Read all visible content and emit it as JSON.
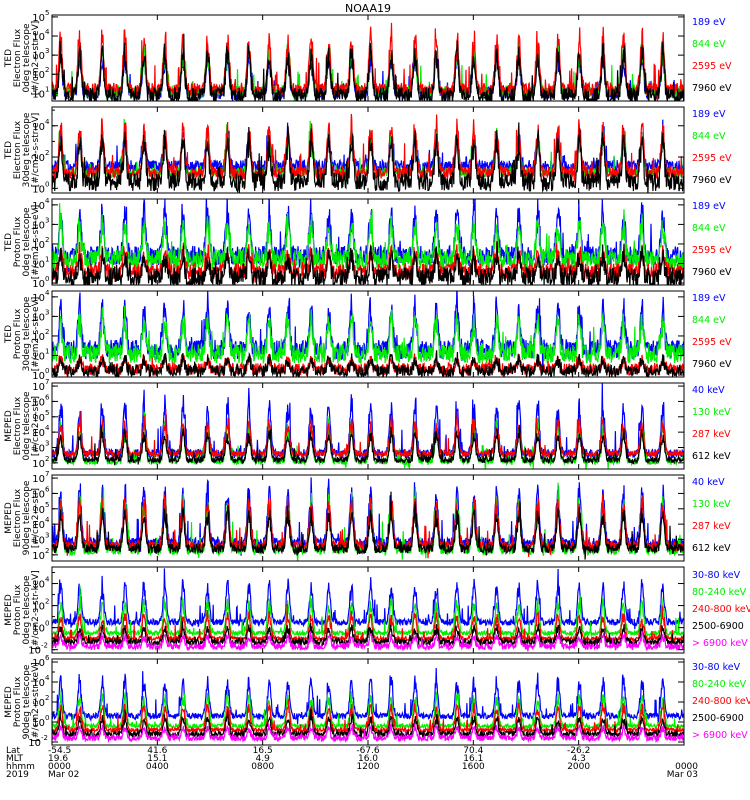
{
  "colors": {
    "black": "#000000",
    "red": "#ff0000",
    "green": "#00ee00",
    "blue": "#0000ff",
    "magenta": "#ff00ff"
  },
  "chart_data": {
    "type": "line",
    "title": "NOAA19",
    "panels": [
      {
        "ylabel": [
          "TED",
          "Electron Flux",
          "0deg telescope",
          "[#/cm2-s-str-eV]"
        ],
        "yticks": [
          {
            "base": "10",
            "exp": "1"
          },
          {
            "base": "10",
            "exp": "2"
          },
          {
            "base": "10",
            "exp": "3"
          },
          {
            "base": "10",
            "exp": "4"
          },
          {
            "base": "10",
            "exp": "5"
          }
        ],
        "ymin_exp": 0.6,
        "ymax_exp": 5.1,
        "series": [
          {
            "name": "7960 eV",
            "color": "#000000",
            "base": 0.9,
            "amp": 2.2,
            "noise": 0.4
          },
          {
            "name": "2595 eV",
            "color": "#ff0000",
            "base": 1.2,
            "amp": 2.6,
            "noise": 0.35
          },
          {
            "name": "844 eV",
            "color": "#00ee00",
            "base": 1.1,
            "amp": 2.0,
            "noise": 0.3
          },
          {
            "name": "189 eV",
            "color": "#0000ff",
            "base": 1.0,
            "amp": 1.8,
            "noise": 0.3
          }
        ]
      },
      {
        "ylabel": [
          "TED",
          "Electron Flux",
          "30deg telescope",
          "[#/cm2-s-str-eV]"
        ],
        "yticks": [
          {
            "base": "10",
            "exp": "0"
          },
          {
            "base": "10",
            "exp": "2"
          },
          {
            "base": "10",
            "exp": "4"
          }
        ],
        "ymin_exp": -0.3,
        "ymax_exp": 5.2,
        "series": [
          {
            "name": "7960 eV",
            "color": "#000000",
            "base": 0.4,
            "amp": 2.6,
            "noise": 0.6
          },
          {
            "name": "2595 eV",
            "color": "#ff0000",
            "base": 1.0,
            "amp": 2.8,
            "noise": 0.4
          },
          {
            "name": "844 eV",
            "color": "#00ee00",
            "base": 1.0,
            "amp": 2.2,
            "noise": 0.3
          },
          {
            "name": "189 eV",
            "color": "#0000ff",
            "base": 1.4,
            "amp": 1.8,
            "noise": 0.4
          }
        ]
      },
      {
        "ylabel": [
          "TED",
          "Proton Flux",
          "0deg telescope",
          "[#/cm2-s-str-eV]"
        ],
        "yticks": [
          {
            "base": "10",
            "exp": "0"
          },
          {
            "base": "10",
            "exp": "1"
          },
          {
            "base": "10",
            "exp": "2"
          },
          {
            "base": "10",
            "exp": "3"
          },
          {
            "base": "10",
            "exp": "4"
          }
        ],
        "ymin_exp": -0.1,
        "ymax_exp": 4.3,
        "series": [
          {
            "name": "7960 eV",
            "color": "#000000",
            "base": 0.3,
            "amp": 1.0,
            "noise": 0.5
          },
          {
            "name": "2595 eV",
            "color": "#ff0000",
            "base": 0.6,
            "amp": 1.0,
            "noise": 0.4
          },
          {
            "name": "844 eV",
            "color": "#00ee00",
            "base": 1.2,
            "amp": 1.8,
            "noise": 0.5
          },
          {
            "name": "189 eV",
            "color": "#0000ff",
            "base": 1.4,
            "amp": 2.2,
            "noise": 0.5
          }
        ]
      },
      {
        "ylabel": [
          "TED",
          "Proton Flux",
          "30deg telescope",
          "[#/cm2-s-str-eV]"
        ],
        "yticks": [
          {
            "base": "10",
            "exp": "0"
          },
          {
            "base": "10",
            "exp": "1"
          },
          {
            "base": "10",
            "exp": "2"
          },
          {
            "base": "10",
            "exp": "3"
          },
          {
            "base": "10",
            "exp": "4"
          }
        ],
        "ymin_exp": -0.1,
        "ymax_exp": 4.3,
        "series": [
          {
            "name": "7960 eV",
            "color": "#000000",
            "base": 0.2,
            "amp": 0.6,
            "noise": 0.3
          },
          {
            "name": "2595 eV",
            "color": "#ff0000",
            "base": 0.3,
            "amp": 0.5,
            "noise": 0.3
          },
          {
            "name": "844 eV",
            "color": "#00ee00",
            "base": 1.1,
            "amp": 1.7,
            "noise": 0.5
          },
          {
            "name": "189 eV",
            "color": "#0000ff",
            "base": 1.3,
            "amp": 2.1,
            "noise": 0.5
          }
        ]
      },
      {
        "ylabel": [
          "MEPED",
          "Electron Flux",
          "0deg telescope",
          "[#/cm2-s-str]"
        ],
        "yticks": [
          {
            "base": "10",
            "exp": "2"
          },
          {
            "base": "10",
            "exp": "3"
          },
          {
            "base": "10",
            "exp": "4"
          },
          {
            "base": "10",
            "exp": "5"
          },
          {
            "base": "10",
            "exp": "6"
          },
          {
            "base": "10",
            "exp": "7"
          }
        ],
        "ymin_exp": 1.6,
        "ymax_exp": 7.2,
        "series": [
          {
            "name": "612 keV",
            "color": "#000000",
            "base": 2.2,
            "amp": 1.6,
            "noise": 0.2
          },
          {
            "name": "287 keV",
            "color": "#ff0000",
            "base": 2.6,
            "amp": 1.9,
            "noise": 0.2
          },
          {
            "name": "130 keV",
            "color": "#00ee00",
            "base": 2.1,
            "amp": 2.2,
            "noise": 0.2
          },
          {
            "name": "40 keV",
            "color": "#0000ff",
            "base": 2.6,
            "amp": 3.0,
            "noise": 0.3
          }
        ]
      },
      {
        "ylabel": [
          "MEPED",
          "Electron Flux",
          "90deg telescope",
          "[#/cm2-s-str]"
        ],
        "yticks": [
          {
            "base": "10",
            "exp": "2"
          },
          {
            "base": "10",
            "exp": "3"
          },
          {
            "base": "10",
            "exp": "4"
          },
          {
            "base": "10",
            "exp": "5"
          },
          {
            "base": "10",
            "exp": "6"
          },
          {
            "base": "10",
            "exp": "7"
          }
        ],
        "ymin_exp": 1.6,
        "ymax_exp": 7.2,
        "series": [
          {
            "name": "612 keV",
            "color": "#000000",
            "base": 2.4,
            "amp": 2.2,
            "noise": 0.3
          },
          {
            "name": "287 keV",
            "color": "#ff0000",
            "base": 2.6,
            "amp": 2.6,
            "noise": 0.3
          },
          {
            "name": "130 keV",
            "color": "#00ee00",
            "base": 2.3,
            "amp": 2.9,
            "noise": 0.3
          },
          {
            "name": "40 keV",
            "color": "#0000ff",
            "base": 2.8,
            "amp": 3.2,
            "noise": 0.3
          }
        ]
      },
      {
        "ylabel": [
          "MEPED",
          "Proton Flux",
          "0deg telescope",
          "[#/cm2-s-str-keV]"
        ],
        "yticks": [
          {
            "base": "10",
            "exp": "-2"
          },
          {
            "base": "10",
            "exp": "0"
          },
          {
            "base": "10",
            "exp": "2"
          },
          {
            "base": "10",
            "exp": "4"
          }
        ],
        "ymin_exp": -2.3,
        "ymax_exp": 5.5,
        "series": [
          {
            "name": "> 6900 keV",
            "color": "#ff00ff",
            "base": -1.7,
            "amp": 0.9,
            "noise": 0.3
          },
          {
            "name": "2500-6900",
            "color": "#000000",
            "base": -1.3,
            "amp": 1.2,
            "noise": 0.3
          },
          {
            "name": "240-800 keV",
            "color": "#ff0000",
            "base": -1.0,
            "amp": 2.0,
            "noise": 0.2
          },
          {
            "name": "80-240 keV",
            "color": "#00ee00",
            "base": -0.5,
            "amp": 2.6,
            "noise": 0.2
          },
          {
            "name": "30-80 keV",
            "color": "#0000ff",
            "base": 0.5,
            "amp": 3.2,
            "noise": 0.3
          }
        ]
      },
      {
        "ylabel": [
          "MEPED",
          "Proton Flux",
          "90deg telescope",
          "[#/cm2-s-str-keV]"
        ],
        "yticks": [
          {
            "base": "10",
            "exp": "-2"
          },
          {
            "base": "10",
            "exp": "0"
          },
          {
            "base": "10",
            "exp": "2"
          },
          {
            "base": "10",
            "exp": "4"
          },
          {
            "base": "10",
            "exp": "6"
          }
        ],
        "ymin_exp": -2.3,
        "ymax_exp": 6.3,
        "series": [
          {
            "name": "> 6900 keV",
            "color": "#ff00ff",
            "base": -1.6,
            "amp": 1.0,
            "noise": 0.3
          },
          {
            "name": "2500-6900",
            "color": "#000000",
            "base": -1.2,
            "amp": 1.5,
            "noise": 0.3
          },
          {
            "name": "240-800 keV",
            "color": "#ff0000",
            "base": -0.8,
            "amp": 2.2,
            "noise": 0.2
          },
          {
            "name": "80-240 keV",
            "color": "#00ee00",
            "base": -0.4,
            "amp": 2.8,
            "noise": 0.2
          },
          {
            "name": "30-80 keV",
            "color": "#0000ff",
            "base": 0.6,
            "amp": 3.4,
            "noise": 0.3
          }
        ]
      }
    ],
    "x_axis": {
      "row_labels": [
        "Lat",
        "MLT",
        "hhmm",
        "2019"
      ],
      "ticks": [
        {
          "hour": 0,
          "lat": "-54.5",
          "mlt": "19.6",
          "hhmm": "0000",
          "date": "Mar 02"
        },
        {
          "hour": 4,
          "lat": "41.6",
          "mlt": "15.1",
          "hhmm": "0400",
          "date": ""
        },
        {
          "hour": 8,
          "lat": "16.5",
          "mlt": "4.9",
          "hhmm": "0800",
          "date": ""
        },
        {
          "hour": 12,
          "lat": "-67.6",
          "mlt": "16.0",
          "hhmm": "1200",
          "date": ""
        },
        {
          "hour": 16,
          "lat": "70.4",
          "mlt": "16.1",
          "hhmm": "1600",
          "date": ""
        },
        {
          "hour": 20,
          "lat": "-26.2",
          "mlt": "4.3",
          "hhmm": "2000",
          "date": ""
        },
        {
          "hour": 24,
          "lat": "",
          "mlt": "",
          "hhmm": "0000",
          "date": "Mar 03"
        }
      ],
      "xlim_hours": [
        0,
        24
      ]
    }
  }
}
